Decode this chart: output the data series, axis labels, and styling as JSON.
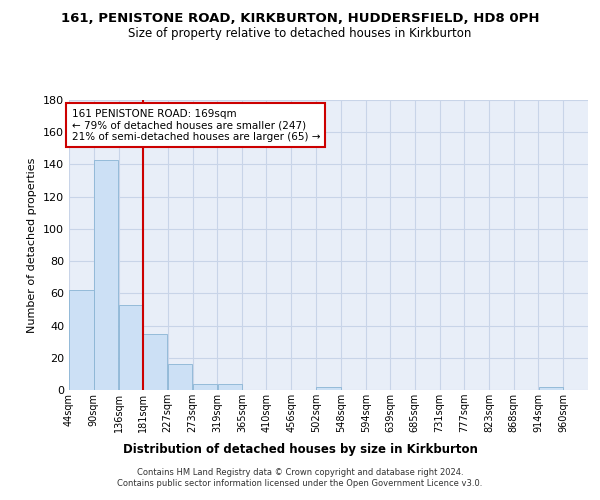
{
  "title1": "161, PENISTONE ROAD, KIRKBURTON, HUDDERSFIELD, HD8 0PH",
  "title2": "Size of property relative to detached houses in Kirkburton",
  "xlabel": "Distribution of detached houses by size in Kirkburton",
  "ylabel": "Number of detached properties",
  "bin_labels": [
    "44sqm",
    "90sqm",
    "136sqm",
    "181sqm",
    "227sqm",
    "273sqm",
    "319sqm",
    "365sqm",
    "410sqm",
    "456sqm",
    "502sqm",
    "548sqm",
    "594sqm",
    "639sqm",
    "685sqm",
    "731sqm",
    "777sqm",
    "823sqm",
    "868sqm",
    "914sqm",
    "960sqm"
  ],
  "bar_heights": [
    62,
    143,
    53,
    35,
    16,
    4,
    4,
    0,
    0,
    0,
    2,
    0,
    0,
    0,
    0,
    0,
    0,
    0,
    0,
    2,
    0
  ],
  "bar_color": "#cce0f5",
  "bar_edge_color": "#8ab4d4",
  "grid_color": "#c8d4e8",
  "bg_color": "#e8eef8",
  "annotation_text": "161 PENISTONE ROAD: 169sqm\n← 79% of detached houses are smaller (247)\n21% of semi-detached houses are larger (65) →",
  "vline_x_index": 3,
  "annotation_box_color": "#ffffff",
  "annotation_box_edge": "#cc0000",
  "vline_color": "#cc0000",
  "footnote": "Contains HM Land Registry data © Crown copyright and database right 2024.\nContains public sector information licensed under the Open Government Licence v3.0.",
  "ylim": [
    0,
    180
  ],
  "yticks": [
    0,
    20,
    40,
    60,
    80,
    100,
    120,
    140,
    160,
    180
  ],
  "bin_edges": [
    44,
    90,
    136,
    181,
    227,
    273,
    319,
    365,
    410,
    456,
    502,
    548,
    594,
    639,
    685,
    731,
    777,
    823,
    868,
    914,
    960
  ]
}
